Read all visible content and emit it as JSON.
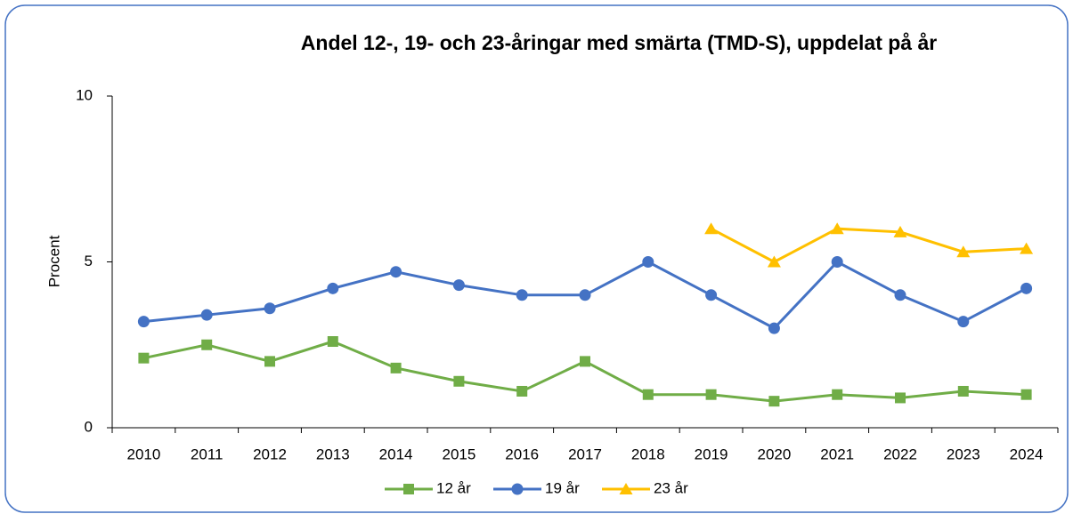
{
  "chart_data": {
    "type": "line",
    "title": "Andel 12-, 19- och 23-åringar med smärta (TMD-S), uppdelat på år",
    "ylabel": "Procent",
    "categories": [
      "2010",
      "2011",
      "2012",
      "2013",
      "2014",
      "2015",
      "2016",
      "2017",
      "2018",
      "2019",
      "2020",
      "2021",
      "2022",
      "2023",
      "2024"
    ],
    "series": [
      {
        "name": "12 år",
        "color": "#70ad47",
        "marker": "square",
        "values": [
          2.1,
          2.5,
          2.0,
          2.6,
          1.8,
          1.4,
          1.1,
          2.0,
          1.0,
          1.0,
          0.8,
          1.0,
          0.9,
          1.1,
          1.0
        ]
      },
      {
        "name": "19 år",
        "color": "#4472c4",
        "marker": "circle",
        "values": [
          3.2,
          3.4,
          3.6,
          4.2,
          4.7,
          4.3,
          4.0,
          4.0,
          5.0,
          4.0,
          3.0,
          5.0,
          4.0,
          3.2,
          4.2
        ]
      },
      {
        "name": "23 år",
        "color": "#ffc000",
        "marker": "triangle",
        "values": [
          null,
          null,
          null,
          null,
          null,
          null,
          null,
          null,
          null,
          6.0,
          5.0,
          6.0,
          5.9,
          5.3,
          5.4
        ]
      }
    ],
    "ylim": [
      0,
      10
    ],
    "yticks": [
      0,
      5,
      10
    ],
    "legend": "bottom"
  }
}
